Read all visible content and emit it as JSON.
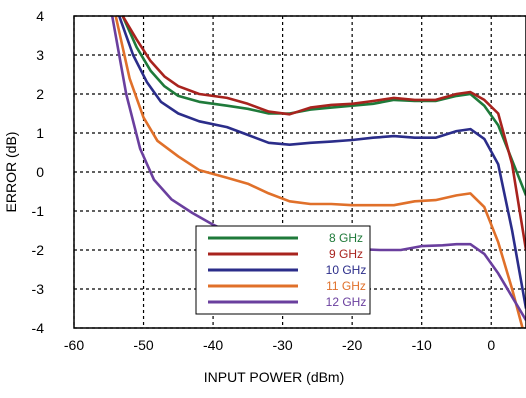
{
  "chart_data": {
    "type": "line",
    "title": "",
    "xlabel": "INPUT POWER (dBm)",
    "ylabel": "ERROR (dB)",
    "xlim": [
      -60,
      5
    ],
    "ylim": [
      -4,
      4
    ],
    "xticks": [
      -60,
      -50,
      -40,
      -30,
      -20,
      -10,
      0
    ],
    "yticks": [
      -4,
      -3,
      -2,
      -1,
      0,
      1,
      2,
      3,
      4
    ],
    "grid": true,
    "legend": "bottom-center",
    "series": [
      {
        "name": "8 GHz",
        "color": "#1f7a3a",
        "points": [
          [
            -53,
            4.0
          ],
          [
            -51,
            3.2
          ],
          [
            -49,
            2.6
          ],
          [
            -47,
            2.2
          ],
          [
            -45,
            1.95
          ],
          [
            -42,
            1.8
          ],
          [
            -38,
            1.7
          ],
          [
            -35,
            1.62
          ],
          [
            -32,
            1.5
          ],
          [
            -29,
            1.5
          ],
          [
            -26,
            1.6
          ],
          [
            -23,
            1.65
          ],
          [
            -20,
            1.7
          ],
          [
            -17,
            1.75
          ],
          [
            -14,
            1.85
          ],
          [
            -11,
            1.82
          ],
          [
            -8,
            1.82
          ],
          [
            -5,
            1.95
          ],
          [
            -3,
            2.0
          ],
          [
            -1,
            1.7
          ],
          [
            1,
            1.2
          ],
          [
            3,
            0.3
          ],
          [
            5,
            -0.6
          ]
        ]
      },
      {
        "name": "9 GHz",
        "color": "#a8231e",
        "points": [
          [
            -53,
            4.0
          ],
          [
            -51,
            3.4
          ],
          [
            -49,
            2.85
          ],
          [
            -47,
            2.45
          ],
          [
            -45,
            2.2
          ],
          [
            -42,
            2.0
          ],
          [
            -38,
            1.9
          ],
          [
            -35,
            1.75
          ],
          [
            -32,
            1.55
          ],
          [
            -29,
            1.48
          ],
          [
            -26,
            1.65
          ],
          [
            -23,
            1.72
          ],
          [
            -20,
            1.75
          ],
          [
            -17,
            1.82
          ],
          [
            -14,
            1.9
          ],
          [
            -11,
            1.85
          ],
          [
            -8,
            1.85
          ],
          [
            -5,
            2.0
          ],
          [
            -3,
            2.05
          ],
          [
            -1,
            1.85
          ],
          [
            1,
            1.5
          ],
          [
            3,
            0.2
          ],
          [
            5,
            -2.0
          ]
        ]
      },
      {
        "name": "10 GHz",
        "color": "#2b2d8a",
        "points": [
          [
            -53.5,
            4.0
          ],
          [
            -51.5,
            3.0
          ],
          [
            -49.5,
            2.3
          ],
          [
            -47.5,
            1.8
          ],
          [
            -45,
            1.5
          ],
          [
            -42,
            1.3
          ],
          [
            -38,
            1.15
          ],
          [
            -35,
            0.95
          ],
          [
            -32,
            0.75
          ],
          [
            -29,
            0.7
          ],
          [
            -26,
            0.75
          ],
          [
            -23,
            0.78
          ],
          [
            -20,
            0.82
          ],
          [
            -17,
            0.88
          ],
          [
            -14,
            0.92
          ],
          [
            -11,
            0.88
          ],
          [
            -8,
            0.88
          ],
          [
            -5,
            1.05
          ],
          [
            -3,
            1.1
          ],
          [
            -1,
            0.85
          ],
          [
            1,
            0.2
          ],
          [
            3,
            -1.5
          ],
          [
            5,
            -3.5
          ]
        ]
      },
      {
        "name": "11 GHz",
        "color": "#e0702a",
        "points": [
          [
            -54,
            4.0
          ],
          [
            -52,
            2.4
          ],
          [
            -50,
            1.4
          ],
          [
            -48,
            0.8
          ],
          [
            -45,
            0.4
          ],
          [
            -42,
            0.05
          ],
          [
            -38,
            -0.15
          ],
          [
            -35,
            -0.3
          ],
          [
            -32,
            -0.55
          ],
          [
            -29,
            -0.75
          ],
          [
            -26,
            -0.82
          ],
          [
            -23,
            -0.82
          ],
          [
            -20,
            -0.85
          ],
          [
            -17,
            -0.85
          ],
          [
            -14,
            -0.85
          ],
          [
            -11,
            -0.75
          ],
          [
            -8,
            -0.72
          ],
          [
            -5,
            -0.6
          ],
          [
            -3,
            -0.55
          ],
          [
            -1,
            -0.9
          ],
          [
            1,
            -1.8
          ],
          [
            3,
            -3.0
          ],
          [
            4.5,
            -4.0
          ]
        ]
      },
      {
        "name": "12 GHz",
        "color": "#6a3f9e",
        "points": [
          [
            -54.5,
            4.0
          ],
          [
            -52.5,
            2.0
          ],
          [
            -50.5,
            0.6
          ],
          [
            -48.5,
            -0.2
          ],
          [
            -46,
            -0.7
          ],
          [
            -43,
            -1.05
          ],
          [
            -40,
            -1.35
          ],
          [
            -37,
            -1.6
          ],
          [
            -34,
            -1.8
          ],
          [
            -31,
            -1.9
          ],
          [
            -28,
            -1.95
          ],
          [
            -25,
            -1.95
          ],
          [
            -22,
            -1.95
          ],
          [
            -19,
            -1.98
          ],
          [
            -16,
            -2.0
          ],
          [
            -13,
            -2.0
          ],
          [
            -10,
            -1.9
          ],
          [
            -7,
            -1.88
          ],
          [
            -5,
            -1.85
          ],
          [
            -3,
            -1.85
          ],
          [
            -1,
            -2.1
          ],
          [
            1,
            -2.6
          ],
          [
            3,
            -3.2
          ],
          [
            5,
            -3.8
          ]
        ]
      }
    ]
  }
}
